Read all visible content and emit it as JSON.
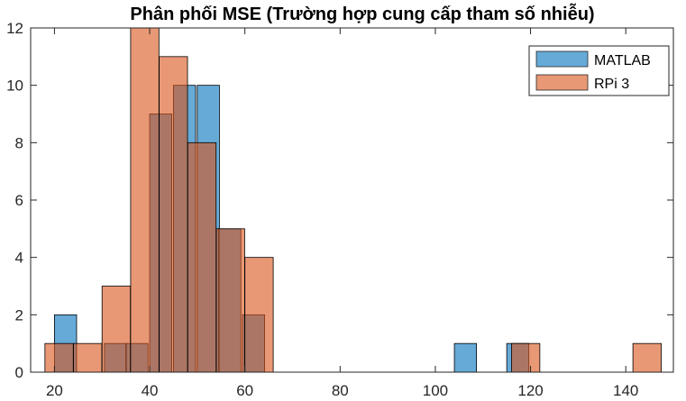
{
  "chart_data": {
    "type": "bar",
    "subtype": "overlaid-histogram",
    "title": "Phân phối MSE (Trường hợp cung cấp tham số nhiễu)",
    "xlabel": "",
    "ylabel": "",
    "xlim": [
      15,
      150
    ],
    "ylim": [
      0,
      12
    ],
    "xticks": [
      20,
      40,
      60,
      80,
      100,
      120,
      140
    ],
    "yticks": [
      0,
      2,
      4,
      6,
      8,
      10,
      12
    ],
    "grid": false,
    "legend_position": "top-right",
    "series": [
      {
        "name": "MATLAB",
        "color": "#0072BD",
        "bin_width": 4.65,
        "bins": [
          {
            "x0": 20.0,
            "count": 2
          },
          {
            "x0": 30.5,
            "count": 1
          },
          {
            "x0": 35.0,
            "count": 1
          },
          {
            "x0": 40.0,
            "count": 9
          },
          {
            "x0": 45.0,
            "count": 10
          },
          {
            "x0": 50.0,
            "count": 10
          },
          {
            "x0": 54.5,
            "count": 5
          },
          {
            "x0": 59.5,
            "count": 2
          },
          {
            "x0": 104.0,
            "count": 1
          },
          {
            "x0": 115.0,
            "count": 1
          }
        ]
      },
      {
        "name": "RPi 3",
        "color": "#D95319",
        "bin_width": 5.95,
        "bins": [
          {
            "x0": 18.0,
            "count": 1
          },
          {
            "x0": 24.0,
            "count": 1
          },
          {
            "x0": 30.0,
            "count": 3
          },
          {
            "x0": 36.0,
            "count": 12
          },
          {
            "x0": 42.0,
            "count": 11
          },
          {
            "x0": 48.0,
            "count": 8
          },
          {
            "x0": 54.0,
            "count": 5
          },
          {
            "x0": 60.0,
            "count": 4
          },
          {
            "x0": 116.0,
            "count": 1
          },
          {
            "x0": 141.5,
            "count": 1
          }
        ]
      }
    ]
  }
}
